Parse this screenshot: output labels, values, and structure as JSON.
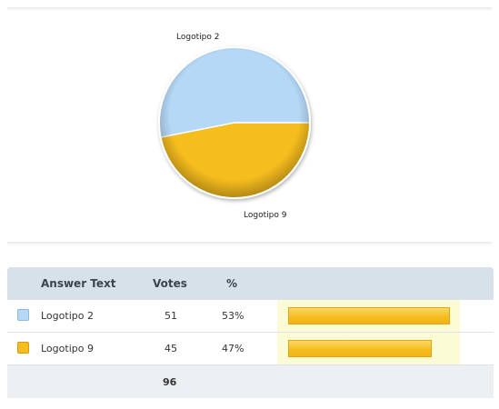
{
  "pie": {
    "colors": {
      "logotipo2": "#b5d8f6",
      "logotipo9": "#f6bd1e"
    },
    "labels": [
      "Logotipo 2",
      "Logotipo 9"
    ]
  },
  "chart_data": {
    "type": "pie",
    "categories": [
      "Logotipo 2",
      "Logotipo 9"
    ],
    "values": [
      51,
      45
    ],
    "percent": [
      53,
      47
    ],
    "colors": [
      "#b5d8f6",
      "#f6bd1e"
    ]
  },
  "table": {
    "headers": {
      "answer": "Answer Text",
      "votes": "Votes",
      "percent": "%"
    },
    "rows": [
      {
        "answer": "Logotipo 2",
        "votes": "51",
        "percent": "53%",
        "share": 0.53,
        "color": "#b5d8f6"
      },
      {
        "answer": "Logotipo 9",
        "votes": "45",
        "percent": "47%",
        "share": 0.47,
        "color": "#f6bd1e"
      }
    ],
    "total": "96",
    "bar_color": "#f5bb1a"
  }
}
